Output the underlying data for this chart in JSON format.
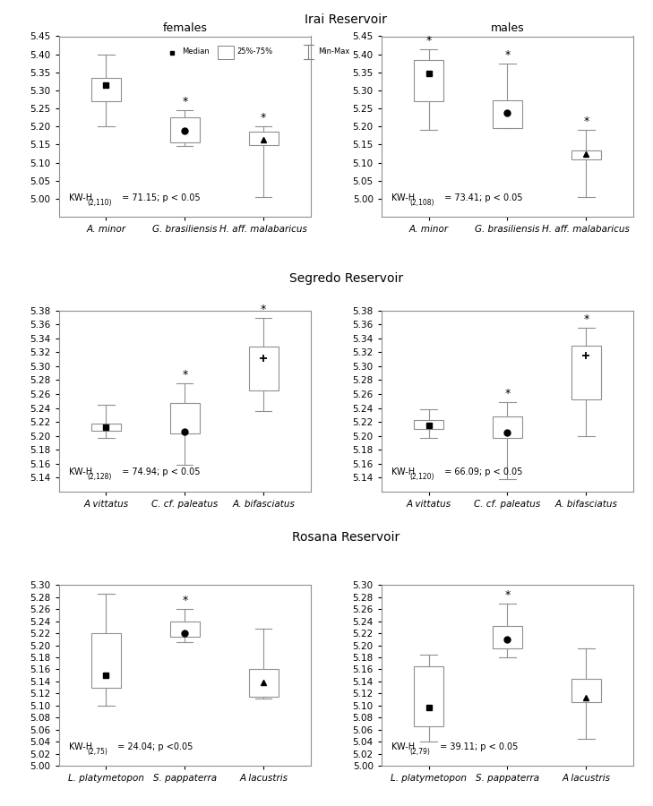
{
  "col_titles": [
    "females",
    "males"
  ],
  "row_titles": [
    "Irai Reservoir",
    "Segredo Reservoir",
    "Rosana Reservoir"
  ],
  "subplots": [
    {
      "row": 0,
      "col": 0,
      "ylim": [
        4.95,
        5.45
      ],
      "yticks": [
        5.0,
        5.05,
        5.1,
        5.15,
        5.2,
        5.25,
        5.3,
        5.35,
        5.4,
        5.45
      ],
      "kw_main": "KW-H",
      "kw_sub": "(2,110)",
      "kw_val": " = 71.15; p < 0.05",
      "species": [
        "A. minor",
        "G. brasiliensis",
        "H. aff. malabaricus"
      ],
      "star": [
        false,
        true,
        true
      ],
      "median": [
        5.315,
        5.188,
        5.163
      ],
      "q1": [
        5.27,
        5.155,
        5.148
      ],
      "q3": [
        5.335,
        5.225,
        5.185
      ],
      "wmin": [
        5.2,
        5.145,
        5.005
      ],
      "wmax": [
        5.4,
        5.245,
        5.2
      ],
      "marker": [
        "s",
        "o",
        "^"
      ],
      "show_legend": true
    },
    {
      "row": 0,
      "col": 1,
      "ylim": [
        4.95,
        5.45
      ],
      "yticks": [
        5.0,
        5.05,
        5.1,
        5.15,
        5.2,
        5.25,
        5.3,
        5.35,
        5.4,
        5.45
      ],
      "kw_main": "KW-H",
      "kw_sub": "(2,108)",
      "kw_val": " = 73.41; p < 0.05",
      "species": [
        "A. minor",
        "G. brasiliensis",
        "H. aff. malabaricus"
      ],
      "star": [
        true,
        true,
        true
      ],
      "median": [
        5.348,
        5.237,
        5.123
      ],
      "q1": [
        5.27,
        5.197,
        5.108
      ],
      "q3": [
        5.385,
        5.272,
        5.135
      ],
      "wmin": [
        5.19,
        5.195,
        5.005
      ],
      "wmax": [
        5.415,
        5.375,
        5.19
      ],
      "marker": [
        "s",
        "o",
        "^"
      ],
      "show_legend": false
    },
    {
      "row": 1,
      "col": 0,
      "ylim": [
        5.12,
        5.38
      ],
      "yticks": [
        5.14,
        5.16,
        5.18,
        5.2,
        5.22,
        5.24,
        5.26,
        5.28,
        5.3,
        5.32,
        5.34,
        5.36,
        5.38
      ],
      "kw_main": "KW-H",
      "kw_sub": "(2,128)",
      "kw_val": " = 74.94; p < 0.05",
      "species": [
        "A vittatus",
        "C. cf. paleatus",
        "A. bifasciatus"
      ],
      "star": [
        false,
        true,
        true
      ],
      "median": [
        5.212,
        5.206,
        5.312
      ],
      "q1": [
        5.207,
        5.203,
        5.265
      ],
      "q3": [
        5.218,
        5.247,
        5.328
      ],
      "wmin": [
        5.197,
        5.158,
        5.235
      ],
      "wmax": [
        5.245,
        5.276,
        5.37
      ],
      "marker": [
        "s",
        "o",
        "+"
      ],
      "show_legend": false
    },
    {
      "row": 1,
      "col": 1,
      "ylim": [
        5.12,
        5.38
      ],
      "yticks": [
        5.14,
        5.16,
        5.18,
        5.2,
        5.22,
        5.24,
        5.26,
        5.28,
        5.3,
        5.32,
        5.34,
        5.36,
        5.38
      ],
      "kw_main": "KW-H",
      "kw_sub": "(2,120)",
      "kw_val": " = 66.09; p < 0.05",
      "species": [
        "A vittatus",
        "C. cf. paleatus",
        "A. bifasciatus"
      ],
      "star": [
        false,
        true,
        true
      ],
      "median": [
        5.215,
        5.205,
        5.315
      ],
      "q1": [
        5.21,
        5.197,
        5.252
      ],
      "q3": [
        5.222,
        5.228,
        5.33
      ],
      "wmin": [
        5.197,
        5.138,
        5.2
      ],
      "wmax": [
        5.238,
        5.248,
        5.355
      ],
      "marker": [
        "s",
        "o",
        "+"
      ],
      "show_legend": false
    },
    {
      "row": 2,
      "col": 0,
      "ylim": [
        5.0,
        5.3
      ],
      "yticks": [
        5.0,
        5.02,
        5.04,
        5.06,
        5.08,
        5.1,
        5.12,
        5.14,
        5.16,
        5.18,
        5.2,
        5.22,
        5.24,
        5.26,
        5.28,
        5.3
      ],
      "kw_main": "KW-H",
      "kw_sub": "(2,75)",
      "kw_val": " = 24.04; p <0.05",
      "species": [
        "L. platymetopon",
        "S. pappaterra",
        "A lacustris"
      ],
      "star": [
        false,
        true,
        false
      ],
      "median": [
        5.15,
        5.22,
        5.138
      ],
      "q1": [
        5.13,
        5.215,
        5.115
      ],
      "q3": [
        5.22,
        5.24,
        5.16
      ],
      "wmin": [
        5.1,
        5.205,
        5.112
      ],
      "wmax": [
        5.285,
        5.26,
        5.228
      ],
      "marker": [
        "s",
        "o",
        "^"
      ],
      "show_legend": false
    },
    {
      "row": 2,
      "col": 1,
      "ylim": [
        5.0,
        5.3
      ],
      "yticks": [
        5.0,
        5.02,
        5.04,
        5.06,
        5.08,
        5.1,
        5.12,
        5.14,
        5.16,
        5.18,
        5.2,
        5.22,
        5.24,
        5.26,
        5.28,
        5.3
      ],
      "kw_main": "KW-H",
      "kw_sub": "(2,79)",
      "kw_val": " = 39.11; p < 0.05",
      "species": [
        "L. platymetopon",
        "S. pappaterra",
        "A lacustris"
      ],
      "star": [
        false,
        true,
        false
      ],
      "median": [
        5.097,
        5.21,
        5.113
      ],
      "q1": [
        5.065,
        5.195,
        5.105
      ],
      "q3": [
        5.165,
        5.232,
        5.145
      ],
      "wmin": [
        5.04,
        5.18,
        5.045
      ],
      "wmax": [
        5.185,
        5.27,
        5.195
      ],
      "marker": [
        "s",
        "o",
        "^"
      ],
      "show_legend": false
    }
  ],
  "box_color": "white",
  "box_edge_color": "#909090",
  "whisker_color": "#909090",
  "background_color": "white"
}
